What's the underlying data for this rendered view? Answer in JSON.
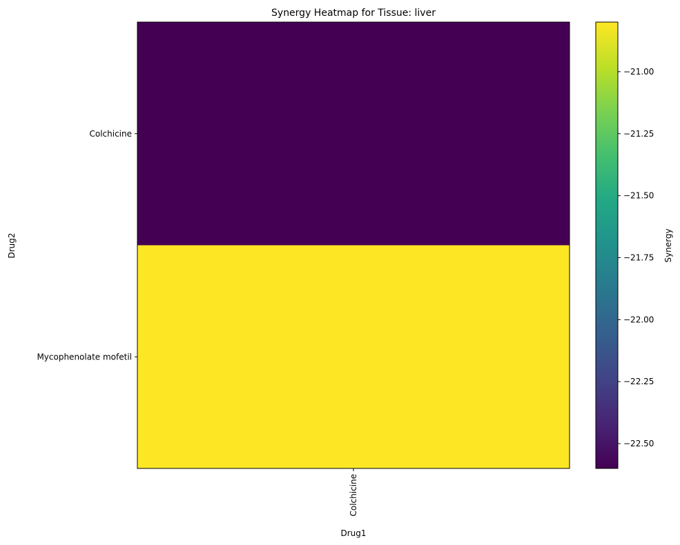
{
  "chart_data": {
    "type": "heatmap",
    "title": "Synergy Heatmap for Tissue: liver",
    "xlabel": "Drug1",
    "ylabel": "Drug2",
    "x_categories": [
      "Colchicine"
    ],
    "y_categories": [
      "Colchicine",
      "Mycophenolate mofetil"
    ],
    "values": [
      [
        -22.6
      ],
      [
        -20.8
      ]
    ],
    "colormap": "viridis",
    "colorbar": {
      "label": "Synergy",
      "range": [
        -22.6,
        -20.8
      ],
      "ticks": [
        -21.0,
        -21.25,
        -21.5,
        -21.75,
        -22.0,
        -22.25,
        -22.5
      ],
      "tick_labels": [
        "−21.00",
        "−21.25",
        "−21.50",
        "−21.75",
        "−22.00",
        "−22.25",
        "−22.50"
      ]
    },
    "grid": false
  }
}
